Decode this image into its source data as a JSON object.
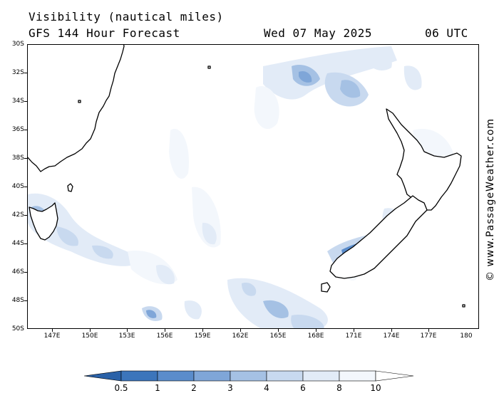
{
  "header": {
    "title": "Visibility (nautical miles)",
    "model": "GFS 144 Hour Forecast",
    "date": "Wed 07 May 2025",
    "time": "06 UTC"
  },
  "credit": "© www.PassageWeather.com",
  "map": {
    "lon_range": [
      144,
      180
    ],
    "lat_range": [
      -50,
      -30
    ],
    "lat_labels": [
      "30S",
      "32S",
      "34S",
      "36S",
      "38S",
      "40S",
      "42S",
      "44S",
      "46S",
      "48S",
      "50S"
    ],
    "lon_labels": [
      "147E",
      "150E",
      "153E",
      "156E",
      "159E",
      "162E",
      "165E",
      "168E",
      "171E",
      "174E",
      "177E",
      "180"
    ],
    "coastline_color": "#000000",
    "background_color": "#ffffff"
  },
  "legend": {
    "labels": [
      "0.5",
      "1",
      "2",
      "3",
      "4",
      "6",
      "8",
      "10"
    ],
    "colors": [
      "#2b62a8",
      "#3c75bb",
      "#5a8ccb",
      "#7fa6d8",
      "#a5c1e4",
      "#c8d9ef",
      "#e2ebf7",
      "#f3f7fc",
      "#ffffff"
    ]
  }
}
